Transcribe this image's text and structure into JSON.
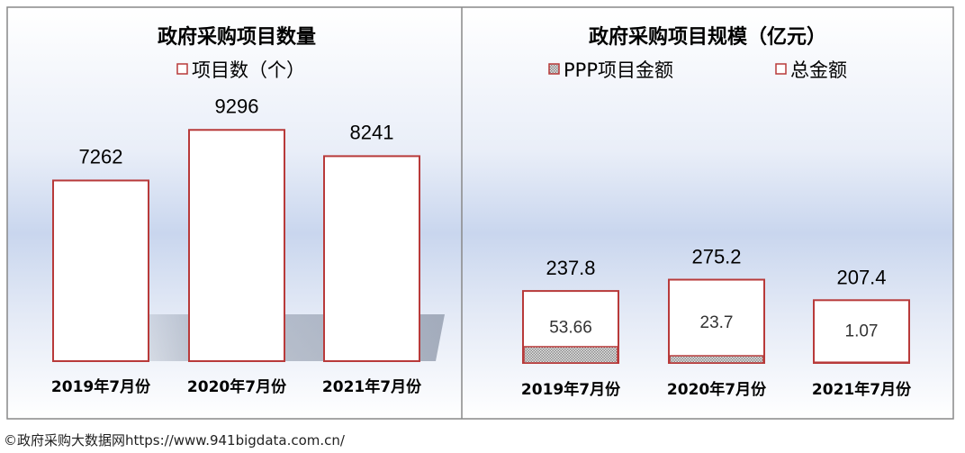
{
  "chart_data": [
    {
      "type": "bar",
      "title": "政府采购项目数量",
      "categories": [
        "2019年7月份",
        "2020年7月份",
        "2021年7月份"
      ],
      "series": [
        {
          "name": "项目数（个）",
          "values": [
            7262,
            9296,
            8241
          ]
        }
      ],
      "ylim": [
        0,
        10500
      ],
      "legend": "top",
      "grid": false
    },
    {
      "type": "bar",
      "title": "政府采购项目规模（亿元）",
      "categories": [
        "2019年7月份",
        "2020年7月份",
        "2021年7月份"
      ],
      "series": [
        {
          "name": "PPP项目金额",
          "values": [
            53.66,
            23.7,
            1.07
          ]
        },
        {
          "name": "总金额",
          "values": [
            237.8,
            275.2,
            207.4
          ]
        }
      ],
      "ylim": [
        0,
        1000
      ],
      "legend": "top",
      "grid": false
    }
  ],
  "colors": {
    "bar_border": "#b83a3a",
    "ppp_fill": "#c8c8c8",
    "panel_border": "#888888"
  },
  "footer": "©政府采购大数据网https://www.941bigdata.com.cn/"
}
